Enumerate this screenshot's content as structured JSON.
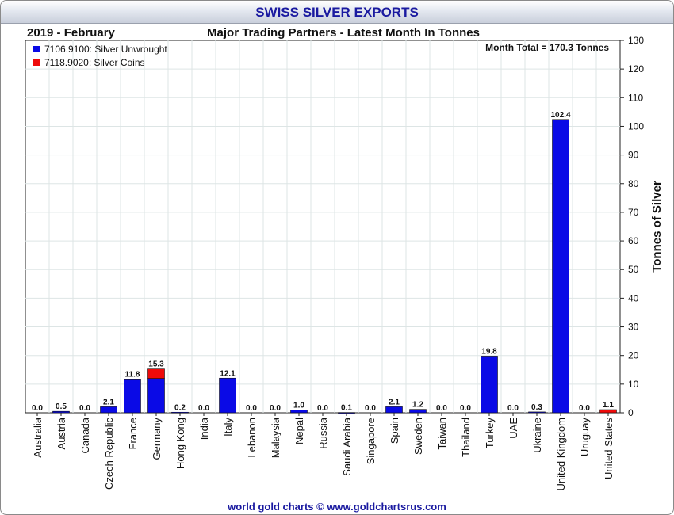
{
  "title": "SWISS SILVER EXPORTS",
  "left_header": "2019 - February",
  "center_header": "Major Trading Partners - Latest Month In Tonnes",
  "month_total": "Month Total = 170.3 Tonnes",
  "credit": "world gold charts © www.goldchartsrus.com",
  "colors": {
    "unwrought": "#0a0ae6",
    "coins": "#ee0a0a",
    "title": "#1a1aa0"
  },
  "chart_data": {
    "type": "bar",
    "stacked": true,
    "ylabel": "Tonnes of Silver",
    "ylim": [
      0,
      130
    ],
    "yticks": [
      0,
      10,
      20,
      30,
      40,
      50,
      60,
      70,
      80,
      90,
      100,
      110,
      120,
      130
    ],
    "y_axis_side": "right",
    "grid": true,
    "legend_placement": "top-left",
    "categories": [
      "Australia",
      "Austria",
      "Canada",
      "Czech Republic",
      "France",
      "Germany",
      "Hong Kong",
      "India",
      "Italy",
      "Lebanon",
      "Malaysia",
      "Nepal",
      "Russia",
      "Saudi Arabia",
      "Singapore",
      "Spain",
      "Sweden",
      "Taiwan",
      "Thailand",
      "Turkey",
      "UAE",
      "Ukraine",
      "United Kingdom",
      "Uruguay",
      "United States"
    ],
    "series": [
      {
        "name": "7106.9100: Silver Unwrought",
        "color": "#0a0ae6",
        "values": [
          0.0,
          0.5,
          0.0,
          2.1,
          11.8,
          12.0,
          0.2,
          0.0,
          12.1,
          0.0,
          0.0,
          1.0,
          0.0,
          0.1,
          0.0,
          2.1,
          1.2,
          0.0,
          0.0,
          19.8,
          0.0,
          0.3,
          102.4,
          0.0,
          0.0
        ]
      },
      {
        "name": "7118.9020: Silver Coins",
        "color": "#ee0a0a",
        "values": [
          0.0,
          0.0,
          0.0,
          0.0,
          0.0,
          3.3,
          0.0,
          0.0,
          0.0,
          0.0,
          0.0,
          0.0,
          0.0,
          0.0,
          0.0,
          0.0,
          0.0,
          0.0,
          0.0,
          0.0,
          0.0,
          0.0,
          0.0,
          0.0,
          1.1
        ]
      }
    ],
    "totals": [
      "0.0",
      "0.5",
      "0.0",
      "2.1",
      "11.8",
      "15.3",
      "0.2",
      "0.0",
      "12.1",
      "0.0",
      "0.0",
      "1.0",
      "0.0",
      "0.1",
      "0.0",
      "2.1",
      "1.2",
      "0.0",
      "0.0",
      "19.8",
      "0.0",
      "0.3",
      "102.4",
      "0.0",
      "1.1"
    ]
  }
}
